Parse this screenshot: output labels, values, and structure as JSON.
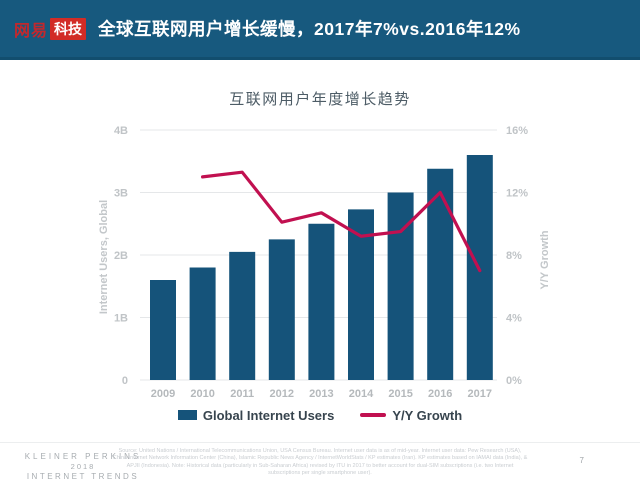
{
  "header": {
    "logo_netease": "网易",
    "logo_tech": "科技",
    "title": "全球互联网用户增长缓慢，2017年7%vs.2016年12%"
  },
  "chart_data": {
    "type": "bar",
    "title": "互联网用户年度增长趋势",
    "categories": [
      "2009",
      "2010",
      "2011",
      "2012",
      "2013",
      "2014",
      "2015",
      "2016",
      "2017"
    ],
    "series": [
      {
        "name": "Global Internet Users",
        "type": "bar",
        "axis": "left",
        "unit": "B",
        "color": "#15537A",
        "values": [
          1.6,
          1.8,
          2.05,
          2.25,
          2.5,
          2.73,
          3.0,
          3.38,
          3.6
        ]
      },
      {
        "name": "Y/Y Growth",
        "type": "line",
        "axis": "right",
        "unit": "%",
        "color": "#C11050",
        "values": [
          null,
          13.0,
          13.3,
          10.1,
          10.7,
          9.2,
          9.5,
          12.0,
          7.0
        ]
      }
    ],
    "left_axis": {
      "label": "Internet Users, Global",
      "ticks": [
        "0",
        "1B",
        "2B",
        "3B",
        "4B"
      ],
      "range": [
        0,
        4
      ]
    },
    "right_axis": {
      "label": "Y/Y Growth",
      "ticks": [
        "0%",
        "4%",
        "8%",
        "12%",
        "16%"
      ],
      "range": [
        0,
        16
      ]
    },
    "grid": true,
    "legend_position": "bottom"
  },
  "legend": {
    "bar_label": "Global Internet Users",
    "line_label": "Y/Y Growth"
  },
  "footer": {
    "brand_line1": "KLEINER PERKINS",
    "brand_line2": "2018",
    "brand_line3": "INTERNET TRENDS",
    "source": "Source: United Nations / International Telecommunications Union, USA Census Bureau. Internet user data is as of mid-year. Internet user data: Pew Research (USA), China Internet Network Information Center (China), Islamic Republic News Agency / InternetWorldStats / KP estimates (Iran). KP estimates based on IAMAI data (India), & APJII (Indonesia). Note: Historical data (particularly in Sub-Saharan Africa) revised by ITU in 2017 to better account for dual-SIM subscriptions (i.e. two Internet subscriptions per single smartphone user).",
    "page_number": "7"
  },
  "colors": {
    "header_bg": "#17597E",
    "bar": "#15537A",
    "line": "#C11050",
    "grid": "#E5E7E9",
    "tick_label": "#C0C4C7",
    "x_label": "#B5B9BC",
    "axis_title": "#C3C7CA"
  }
}
